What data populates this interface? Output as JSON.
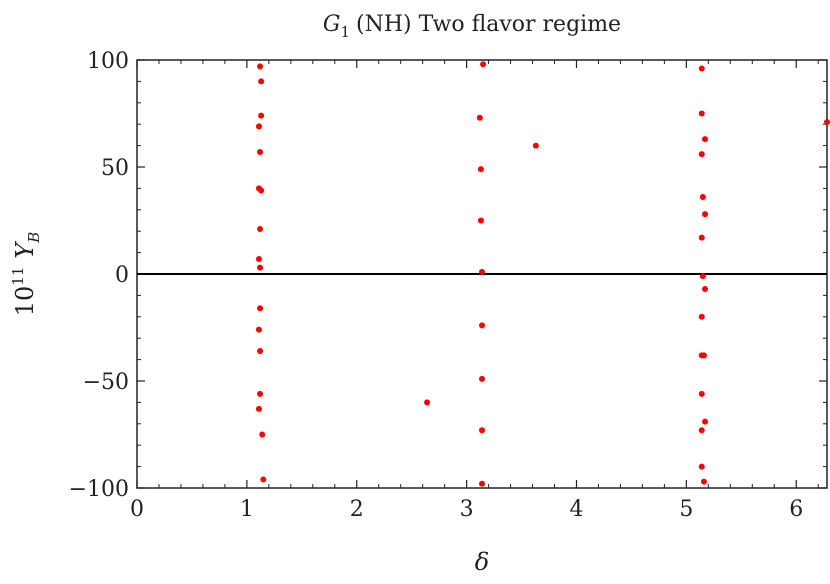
{
  "chart_data": {
    "type": "scatter",
    "title": {
      "symbol": "G",
      "subscript": "1",
      "rest": "(NH) Two flavor regime"
    },
    "xlabel": "δ",
    "ylabel": {
      "base": "10",
      "exponent": "11",
      "symbol": "Y",
      "subscript": "B"
    },
    "xlim": [
      0,
      6.28
    ],
    "ylim": [
      -100,
      100
    ],
    "x_ticks": [
      0,
      1,
      2,
      3,
      4,
      5,
      6
    ],
    "y_ticks": [
      -100,
      -50,
      0,
      50,
      100
    ],
    "x_tick_labels": [
      "0",
      "1",
      "2",
      "3",
      "4",
      "5",
      "6"
    ],
    "y_tick_labels": [
      "−100",
      "−50",
      "0",
      "50",
      "100"
    ],
    "zero_line": true,
    "grid": false,
    "marker_color": "#ff0000",
    "series": [
      {
        "points": [
          [
            1.12,
            97
          ],
          [
            1.13,
            90
          ],
          [
            1.13,
            74
          ],
          [
            1.11,
            69
          ],
          [
            1.12,
            57
          ],
          [
            1.11,
            40
          ],
          [
            1.13,
            39
          ],
          [
            1.12,
            21
          ],
          [
            1.11,
            7
          ],
          [
            1.12,
            3
          ],
          [
            1.12,
            -16
          ],
          [
            1.11,
            -26
          ],
          [
            1.12,
            -36
          ],
          [
            1.12,
            -56
          ],
          [
            1.11,
            -63
          ],
          [
            1.14,
            -75
          ],
          [
            1.15,
            -96
          ],
          [
            3.15,
            98
          ],
          [
            3.12,
            73
          ],
          [
            3.13,
            49
          ],
          [
            3.13,
            25
          ],
          [
            3.14,
            1
          ],
          [
            3.14,
            -24
          ],
          [
            3.14,
            -49
          ],
          [
            3.14,
            -73
          ],
          [
            3.14,
            -98
          ],
          [
            3.63,
            60
          ],
          [
            2.64,
            -60
          ],
          [
            5.14,
            96
          ],
          [
            5.14,
            75
          ],
          [
            5.17,
            63
          ],
          [
            5.14,
            56
          ],
          [
            5.15,
            36
          ],
          [
            5.17,
            28
          ],
          [
            5.14,
            17
          ],
          [
            5.15,
            -1
          ],
          [
            5.17,
            -7
          ],
          [
            5.14,
            -20
          ],
          [
            5.16,
            -38
          ],
          [
            5.14,
            -38
          ],
          [
            5.14,
            -56
          ],
          [
            5.17,
            -69
          ],
          [
            5.14,
            -73
          ],
          [
            5.14,
            -90
          ],
          [
            5.16,
            -97
          ],
          [
            6.28,
            71
          ]
        ]
      }
    ]
  }
}
